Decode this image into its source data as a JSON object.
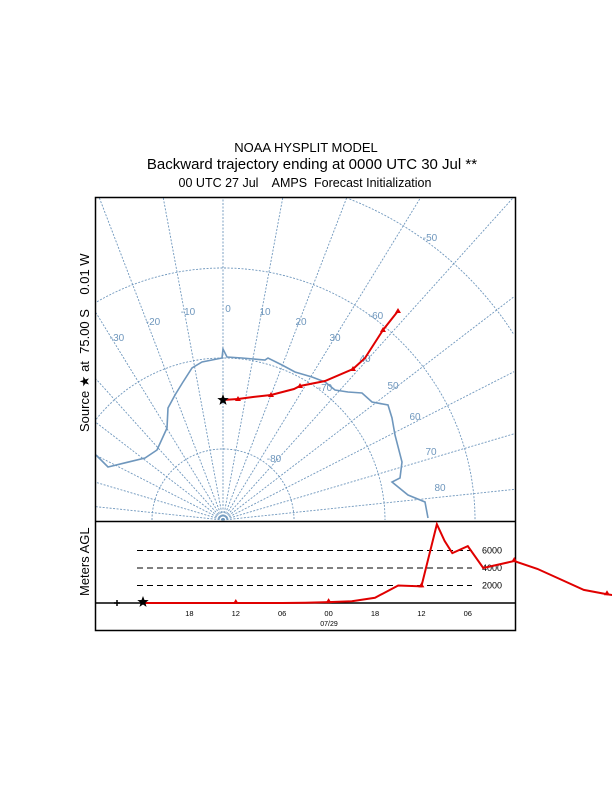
{
  "chart_data": {
    "type": "line",
    "title": "NOAA HYSPLIT MODEL",
    "subtitle": "Backward trajectory ending at 0000 UTC 30 Jul **",
    "subtitle2": "00 UTC 27 Jul    AMPS  Forecast Initialization",
    "source_label": "Source ★ at  75.00 S    0.01 W",
    "map": {
      "latitude_labels": [
        "-50",
        "-60",
        "-70",
        "-80"
      ],
      "longitude_labels": [
        "-30",
        "-20",
        "-10",
        "0",
        "10",
        "20",
        "30",
        "40",
        "50",
        "60",
        "70",
        "80"
      ],
      "source": {
        "lat": -75.0,
        "lon": -0.01
      },
      "trajectory_lonlat": [
        [
          -0.01,
          -75.0
        ],
        [
          5,
          -74.8
        ],
        [
          10,
          -74.4
        ],
        [
          15,
          -73.9
        ],
        [
          22,
          -72.8
        ],
        [
          24,
          -72.4
        ],
        [
          30,
          -71.2
        ],
        [
          36,
          -69.0
        ],
        [
          39,
          -67.6
        ],
        [
          42,
          -64.5
        ],
        [
          44,
          -62.3
        ]
      ]
    },
    "height": {
      "ylabel": "Meters AGL",
      "gridlines": [
        2000,
        4000,
        6000
      ],
      "gridline_labels": [
        "2000",
        "4000",
        "6000"
      ],
      "x_tick_labels": [
        "18",
        "12",
        "06",
        "00",
        "18",
        "12",
        "06"
      ],
      "date_label": "07/29",
      "hours_back": [
        0,
        6,
        12,
        18,
        21,
        24,
        27,
        30,
        33,
        36,
        38,
        39,
        40,
        42,
        44,
        48,
        51,
        54,
        57,
        60,
        63,
        66,
        72
      ],
      "series": [
        {
          "name": "trajectory",
          "color": "#e00000",
          "values": [
            0,
            0,
            0,
            0,
            30,
            100,
            200,
            600,
            2000,
            1900,
            9000,
            7100,
            5700,
            6500,
            4000,
            4800,
            3900,
            2700,
            1500,
            1000,
            600,
            400,
            200
          ]
        }
      ],
      "marker_hours": [
        0,
        6,
        12,
        18,
        24,
        30,
        36,
        42,
        48,
        54,
        60,
        66,
        72
      ]
    }
  }
}
